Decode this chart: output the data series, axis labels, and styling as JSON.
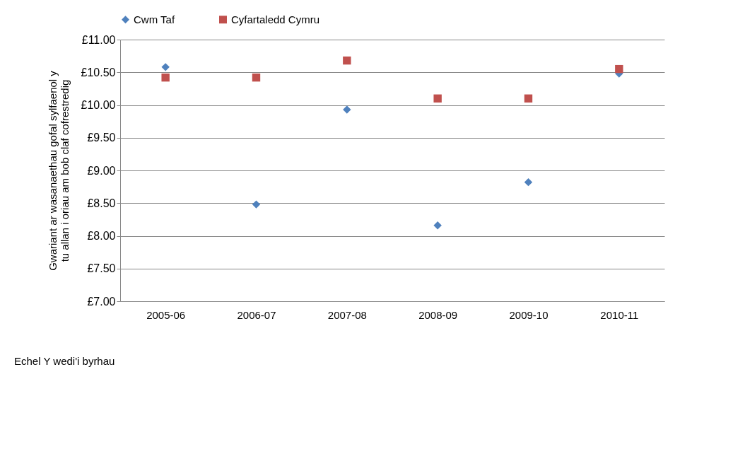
{
  "chart_data": {
    "type": "scatter",
    "ylabel": "Gwariant ar wasanaethau gofal sylfaenol y\ntu allan i oriau am bob claf cofrestredig",
    "categories": [
      "2005-06",
      "2006-07",
      "2007-08",
      "2008-09",
      "2009-10",
      "2010-11"
    ],
    "series": [
      {
        "name": "Cwm Taf",
        "color": "#4f81bd",
        "marker": "diamond",
        "values": [
          10.58,
          8.48,
          9.93,
          8.16,
          8.82,
          10.48
        ]
      },
      {
        "name": "Cyfartaledd Cymru",
        "color": "#c0504d",
        "marker": "square",
        "values": [
          10.42,
          10.42,
          10.68,
          10.1,
          10.1,
          10.55
        ]
      }
    ],
    "ylim": [
      7,
      11
    ],
    "yticks": [
      {
        "value": 7,
        "label": "£7.00"
      },
      {
        "value": 7.5,
        "label": "£7.50"
      },
      {
        "value": 8,
        "label": "£8.00"
      },
      {
        "value": 8.5,
        "label": "£8.50"
      },
      {
        "value": 9,
        "label": "£9.00"
      },
      {
        "value": 9.5,
        "label": "£9.50"
      },
      {
        "value": 10,
        "label": "£10.00"
      },
      {
        "value": 10.5,
        "label": "£10.50"
      },
      {
        "value": 11,
        "label": "£11.00"
      }
    ],
    "grid": "y",
    "legend": "top",
    "annotations": [
      "Echel Y wedi'i byrhau"
    ]
  }
}
